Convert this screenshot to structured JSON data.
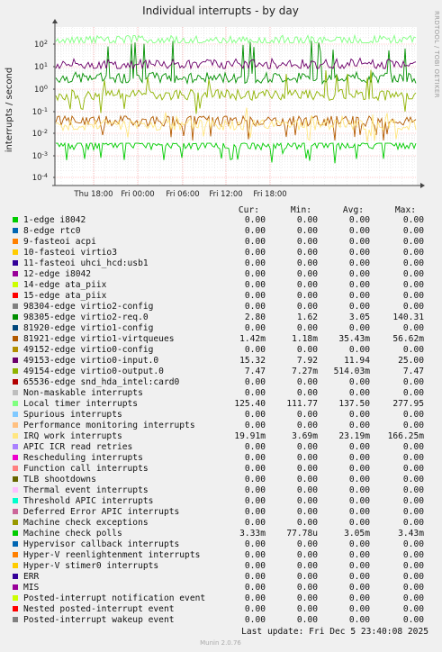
{
  "side_text": "RRDTOOL / TOBI OETIKER",
  "footer": "Munin 2.0.76",
  "last_update": "Last update:  Fri Dec  5 23:40:08 2025",
  "table_headers": [
    "Cur:",
    "Min:",
    "Avg:",
    "Max:"
  ],
  "chart_data": {
    "type": "line",
    "title": "Individual interrupts - by day",
    "ylabel": "interrupts / second",
    "xlabel": "",
    "yscale": "log",
    "y_ticks": [
      "1e-04",
      "1e-03",
      "1e-02",
      "1e-01",
      "1e+00",
      "1e+01",
      "1e+02"
    ],
    "x_ticks": [
      "Thu 18:00",
      "Fri 00:00",
      "Fri 06:00",
      "Fri 12:00",
      "Fri 18:00"
    ],
    "grid": true,
    "series": [
      {
        "name": "1-edge      i8042",
        "color": "#00cc00",
        "cur": "0.00",
        "min": "0.00",
        "avg": "0.00",
        "max": "0.00"
      },
      {
        "name": "8-edge      rtc0",
        "color": "#0066b3",
        "cur": "0.00",
        "min": "0.00",
        "avg": "0.00",
        "max": "0.00"
      },
      {
        "name": "9-fasteoi   acpi",
        "color": "#ff8000",
        "cur": "0.00",
        "min": "0.00",
        "avg": "0.00",
        "max": "0.00"
      },
      {
        "name": "10-fasteoi    virtio3",
        "color": "#ffcc00",
        "cur": "0.00",
        "min": "0.00",
        "avg": "0.00",
        "max": "0.00"
      },
      {
        "name": "11-fasteoi    uhci_hcd:usb1",
        "color": "#330099",
        "cur": "0.00",
        "min": "0.00",
        "avg": "0.00",
        "max": "0.00"
      },
      {
        "name": "12-edge       i8042",
        "color": "#990099",
        "cur": "0.00",
        "min": "0.00",
        "avg": "0.00",
        "max": "0.00"
      },
      {
        "name": "14-edge       ata_piix",
        "color": "#ccff00",
        "cur": "0.00",
        "min": "0.00",
        "avg": "0.00",
        "max": "0.00"
      },
      {
        "name": "15-edge       ata_piix",
        "color": "#ff0000",
        "cur": "0.00",
        "min": "0.00",
        "avg": "0.00",
        "max": "0.00"
      },
      {
        "name": "98304-edge       virtio2-config",
        "color": "#808080",
        "cur": "0.00",
        "min": "0.00",
        "avg": "0.00",
        "max": "0.00"
      },
      {
        "name": "98305-edge       virtio2-req.0",
        "color": "#008f00",
        "cur": "2.80",
        "min": "1.62",
        "avg": "3.05",
        "max": "140.31"
      },
      {
        "name": "81920-edge       virtio1-config",
        "color": "#00487d",
        "cur": "0.00",
        "min": "0.00",
        "avg": "0.00",
        "max": "0.00"
      },
      {
        "name": "81921-edge       virtio1-virtqueues",
        "color": "#b35a00",
        "cur": "1.42m",
        "min": "1.18m",
        "avg": "35.43m",
        "max": "56.62m"
      },
      {
        "name": "49152-edge       virtio0-config",
        "color": "#b38f00",
        "cur": "0.00",
        "min": "0.00",
        "avg": "0.00",
        "max": "0.00"
      },
      {
        "name": "49153-edge       virtio0-input.0",
        "color": "#6b006b",
        "cur": "15.32",
        "min": "7.92",
        "avg": "11.94",
        "max": "25.00"
      },
      {
        "name": "49154-edge       virtio0-output.0",
        "color": "#8fb300",
        "cur": "7.47",
        "min": "7.27m",
        "avg": "514.03m",
        "max": "7.47"
      },
      {
        "name": "65536-edge       snd_hda_intel:card0",
        "color": "#b30000",
        "cur": "0.00",
        "min": "0.00",
        "avg": "0.00",
        "max": "0.00"
      },
      {
        "name": "Non-maskable interrupts",
        "color": "#bebebe",
        "cur": "0.00",
        "min": "0.00",
        "avg": "0.00",
        "max": "0.00"
      },
      {
        "name": "Local timer interrupts",
        "color": "#80ff80",
        "cur": "125.40",
        "min": "111.77",
        "avg": "137.50",
        "max": "277.95"
      },
      {
        "name": "Spurious interrupts",
        "color": "#80c9ff",
        "cur": "0.00",
        "min": "0.00",
        "avg": "0.00",
        "max": "0.00"
      },
      {
        "name": "Performance monitoring interrupts",
        "color": "#ffc080",
        "cur": "0.00",
        "min": "0.00",
        "avg": "0.00",
        "max": "0.00"
      },
      {
        "name": "IRQ work interrupts",
        "color": "#ffe680",
        "cur": "19.91m",
        "min": "3.69m",
        "avg": "23.19m",
        "max": "166.25m"
      },
      {
        "name": "APIC ICR read retries",
        "color": "#aa80ff",
        "cur": "0.00",
        "min": "0.00",
        "avg": "0.00",
        "max": "0.00"
      },
      {
        "name": "Rescheduling interrupts",
        "color": "#ee00cc",
        "cur": "0.00",
        "min": "0.00",
        "avg": "0.00",
        "max": "0.00"
      },
      {
        "name": "Function call interrupts",
        "color": "#ff8080",
        "cur": "0.00",
        "min": "0.00",
        "avg": "0.00",
        "max": "0.00"
      },
      {
        "name": "TLB shootdowns",
        "color": "#666600",
        "cur": "0.00",
        "min": "0.00",
        "avg": "0.00",
        "max": "0.00"
      },
      {
        "name": "Thermal event interrupts",
        "color": "#ffbfff",
        "cur": "0.00",
        "min": "0.00",
        "avg": "0.00",
        "max": "0.00"
      },
      {
        "name": "Threshold APIC interrupts",
        "color": "#00ffcc",
        "cur": "0.00",
        "min": "0.00",
        "avg": "0.00",
        "max": "0.00"
      },
      {
        "name": "Deferred Error APIC interrupts",
        "color": "#cc6699",
        "cur": "0.00",
        "min": "0.00",
        "avg": "0.00",
        "max": "0.00"
      },
      {
        "name": "Machine check exceptions",
        "color": "#999900",
        "cur": "0.00",
        "min": "0.00",
        "avg": "0.00",
        "max": "0.00"
      },
      {
        "name": "Machine check polls",
        "color": "#00cc00",
        "cur": "3.33m",
        "min": "77.78u",
        "avg": "3.05m",
        "max": "3.43m"
      },
      {
        "name": "Hypervisor callback interrupts",
        "color": "#0066b3",
        "cur": "0.00",
        "min": "0.00",
        "avg": "0.00",
        "max": "0.00"
      },
      {
        "name": "Hyper-V reenlightenment interrupts",
        "color": "#ff8000",
        "cur": "0.00",
        "min": "0.00",
        "avg": "0.00",
        "max": "0.00"
      },
      {
        "name": "Hyper-V stimer0 interrupts",
        "color": "#ffcc00",
        "cur": "0.00",
        "min": "0.00",
        "avg": "0.00",
        "max": "0.00"
      },
      {
        "name": "ERR",
        "color": "#330099",
        "cur": "0.00",
        "min": "0.00",
        "avg": "0.00",
        "max": "0.00"
      },
      {
        "name": "MIS",
        "color": "#990099",
        "cur": "0.00",
        "min": "0.00",
        "avg": "0.00",
        "max": "0.00"
      },
      {
        "name": "Posted-interrupt notification event",
        "color": "#ccff00",
        "cur": "0.00",
        "min": "0.00",
        "avg": "0.00",
        "max": "0.00"
      },
      {
        "name": "Nested posted-interrupt event",
        "color": "#ff0000",
        "cur": "0.00",
        "min": "0.00",
        "avg": "0.00",
        "max": "0.00"
      },
      {
        "name": "Posted-interrupt wakeup event",
        "color": "#808080",
        "cur": "0.00",
        "min": "0.00",
        "avg": "0.00",
        "max": "0.00"
      }
    ]
  }
}
